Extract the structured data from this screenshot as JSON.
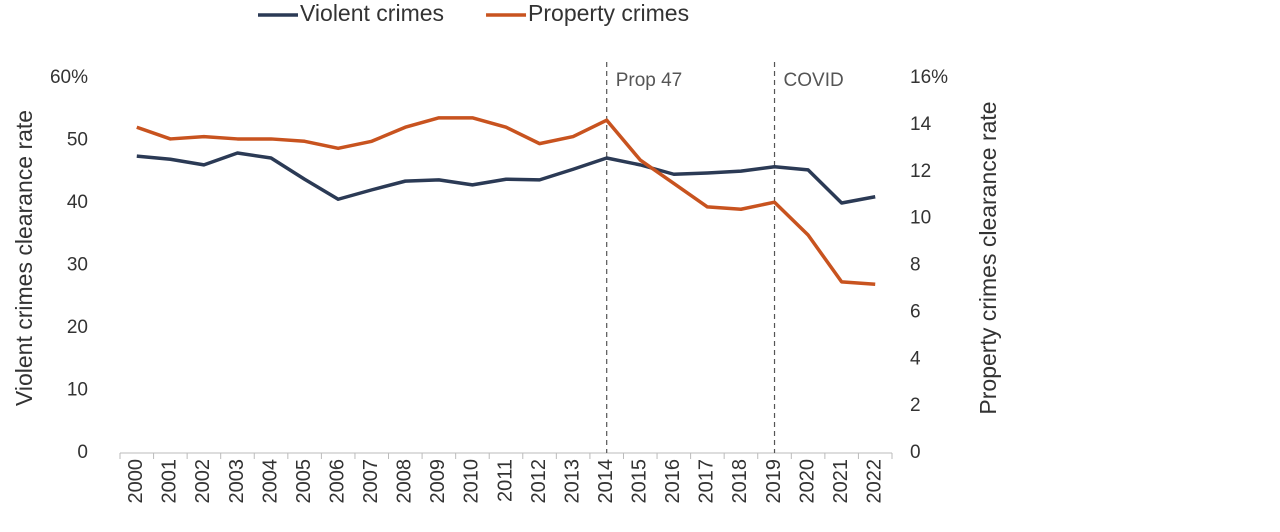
{
  "chart_data": {
    "type": "line",
    "categories": [
      "2000",
      "2001",
      "2002",
      "2003",
      "2004",
      "2005",
      "2006",
      "2007",
      "2008",
      "2009",
      "2010",
      "2011",
      "2012",
      "2013",
      "2014",
      "2015",
      "2016",
      "2017",
      "2018",
      "2019",
      "2020",
      "2021",
      "2022"
    ],
    "series": [
      {
        "name": "Violent crimes",
        "color": "#2b3a55",
        "values": [
          47.5,
          47.0,
          46.1,
          48.0,
          47.2,
          43.8,
          40.6,
          42.1,
          43.5,
          43.7,
          42.9,
          43.8,
          43.7,
          45.4,
          47.2,
          46.1,
          44.6,
          44.8,
          45.1,
          45.8,
          45.3,
          40.0,
          41.0
        ]
      },
      {
        "name": "Property crimes",
        "color": "#c8531f",
        "axis": "y2",
        "values": [
          13.9,
          13.4,
          13.5,
          13.4,
          13.4,
          13.3,
          13.0,
          13.3,
          13.9,
          14.3,
          14.3,
          13.9,
          13.2,
          13.5,
          14.2,
          12.5,
          11.5,
          10.5,
          10.4,
          10.7,
          9.3,
          7.3,
          7.2
        ]
      }
    ],
    "ylabel": "Violent crimes clearance rate",
    "y2label": "Property crimes clearance rate",
    "ylim": [
      0,
      60
    ],
    "yticks": [
      0,
      10,
      20,
      30,
      40,
      50,
      {
        "value": 60,
        "label": "60%"
      }
    ],
    "y2lim": [
      0,
      16
    ],
    "y2ticks": [
      0,
      2,
      4,
      6,
      8,
      10,
      12,
      14,
      {
        "value": 16,
        "label": "16%"
      }
    ],
    "annotations": [
      {
        "text": "Prop 47",
        "x": 2014
      },
      {
        "text": "COVID",
        "x": 2019
      }
    ],
    "legend": "top"
  }
}
